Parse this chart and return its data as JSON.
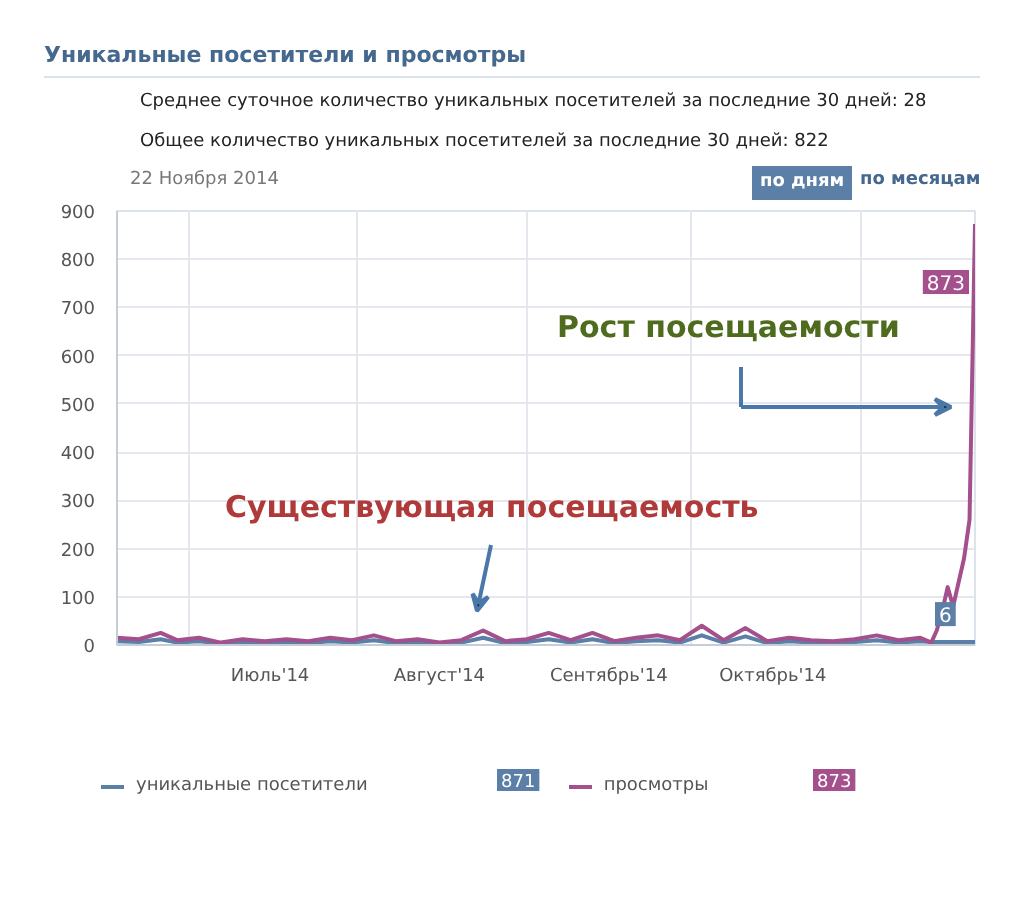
{
  "chart_data": {
    "type": "line",
    "title": "Уникальные посетители и просмотры",
    "annotations": [
      "Среднее суточное количество уникальных посетителей за последние 30 дней: 28",
      "Общее количество уникальных посетителей за последние 30 дней: 822",
      "22 Ноября 2014",
      "по дням",
      "по месяцам",
      "Существующая посещаемость",
      "Рост посещаемости",
      "871",
      "873"
    ],
    "x": [
      "2014-06-18",
      "2014-06-22",
      "2014-06-26",
      "2014-06-29",
      "2014-07-03",
      "2014-07-07",
      "2014-07-11",
      "2014-07-15",
      "2014-07-19",
      "2014-07-23",
      "2014-07-27",
      "2014-07-31",
      "2014-08-04",
      "2014-08-08",
      "2014-08-12",
      "2014-08-16",
      "2014-08-20",
      "2014-08-24",
      "2014-08-28",
      "2014-09-01",
      "2014-09-05",
      "2014-09-09",
      "2014-09-13",
      "2014-09-17",
      "2014-09-21",
      "2014-09-25",
      "2014-09-29",
      "2014-10-03",
      "2014-10-07",
      "2014-10-11",
      "2014-10-15",
      "2014-10-19",
      "2014-10-23",
      "2014-10-27",
      "2014-10-31",
      "2014-11-04",
      "2014-11-08",
      "2014-11-12",
      "2014-11-14",
      "2014-11-15",
      "2014-11-16",
      "2014-11-17",
      "2014-11-18",
      "2014-11-19",
      "2014-11-20",
      "2014-11-21",
      "2014-11-22"
    ],
    "series": [
      {
        "name": "уникальные посетители",
        "color": "#5b7fa6",
        "values": [
          8,
          6,
          12,
          5,
          8,
          3,
          6,
          4,
          6,
          4,
          8,
          5,
          10,
          4,
          6,
          3,
          5,
          15,
          4,
          6,
          12,
          5,
          12,
          4,
          8,
          10,
          5,
          20,
          5,
          18,
          4,
          8,
          5,
          4,
          6,
          10,
          5,
          8,
          6,
          6,
          6,
          6,
          6,
          6,
          6,
          6,
          6
        ],
        "value_labels": [
          null,
          null,
          null,
          null,
          null,
          null,
          null,
          null,
          null,
          null,
          null,
          null,
          null,
          null,
          null,
          null,
          null,
          null,
          null,
          null,
          null,
          null,
          null,
          null,
          null,
          null,
          null,
          null,
          null,
          null,
          null,
          null,
          null,
          null,
          null,
          null,
          null,
          null,
          null,
          null,
          null,
          null,
          null,
          null,
          null,
          null,
          "6"
        ]
      },
      {
        "name": "просмотры",
        "color": "#a3508d",
        "values": [
          15,
          12,
          25,
          10,
          15,
          5,
          12,
          8,
          12,
          8,
          15,
          10,
          20,
          8,
          12,
          5,
          10,
          30,
          8,
          12,
          25,
          10,
          25,
          8,
          15,
          20,
          10,
          40,
          10,
          35,
          8,
          15,
          10,
          8,
          12,
          20,
          10,
          15,
          5,
          30,
          70,
          120,
          80,
          130,
          180,
          260,
          873
        ],
        "value_labels": [
          null,
          null,
          null,
          null,
          null,
          null,
          null,
          null,
          null,
          null,
          null,
          null,
          null,
          null,
          null,
          null,
          null,
          null,
          null,
          null,
          null,
          null,
          null,
          null,
          null,
          null,
          null,
          null,
          null,
          null,
          null,
          null,
          null,
          null,
          null,
          null,
          null,
          null,
          null,
          null,
          null,
          null,
          null,
          null,
          null,
          null,
          "873"
        ]
      }
    ],
    "xlim": [
      "2014-06-18",
      "2014-11-22"
    ],
    "xticks": [
      {
        "value": "2014-07-01",
        "label": null
      },
      {
        "value": "2014-07-16",
        "label": "Июль'14"
      },
      {
        "value": "2014-08-01",
        "label": null
      },
      {
        "value": "2014-08-16",
        "label": "Август'14"
      },
      {
        "value": "2014-09-01",
        "label": null
      },
      {
        "value": "2014-09-16",
        "label": "Сентябрь'14"
      },
      {
        "value": "2014-10-01",
        "label": null
      },
      {
        "value": "2014-10-16",
        "label": "Октябрь'14"
      },
      {
        "value": "2014-11-01",
        "label": null
      }
    ],
    "ylim": [
      0,
      900
    ],
    "yticks": [
      0,
      100,
      200,
      300,
      400,
      500,
      600,
      700,
      800,
      900
    ],
    "grid": true,
    "legend": "bottom"
  }
}
